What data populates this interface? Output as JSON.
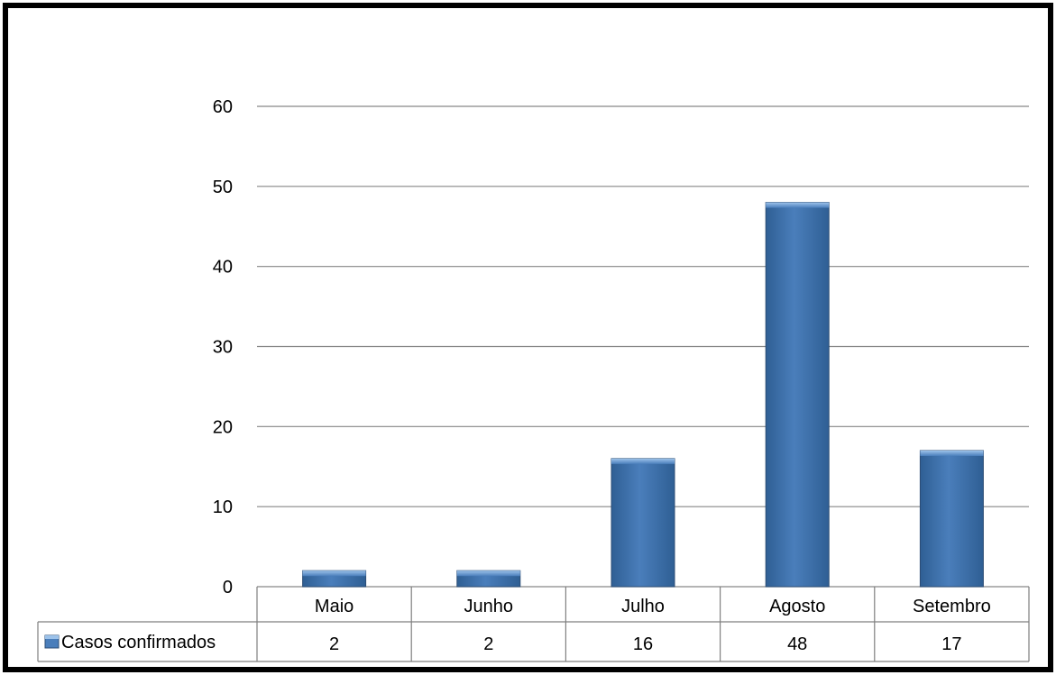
{
  "chart_data": {
    "type": "bar",
    "title": "",
    "xlabel": "",
    "ylabel": "",
    "ylim": [
      0,
      60
    ],
    "yticks": [
      "0",
      "10",
      "20",
      "30",
      "40",
      "50",
      "60"
    ],
    "categories": [
      "Maio",
      "Junho",
      "Julho",
      "Agosto",
      "Setembro"
    ],
    "series": [
      {
        "name": "Casos confirmados",
        "values": [
          2,
          2,
          16,
          48,
          17
        ]
      }
    ],
    "data_table": {
      "row_label": "Casos confirmados",
      "cells": [
        "2",
        "2",
        "16",
        "48",
        "17"
      ]
    },
    "grid": true,
    "legend": "data-table-left",
    "colors": {
      "bar_light": "#5b9bd5",
      "bar_mid": "#4a7ebb",
      "bar_dark": "#2f5f94",
      "bar_edge": "#2c4d75",
      "gridline": "#868686",
      "frame": "#000000"
    }
  }
}
